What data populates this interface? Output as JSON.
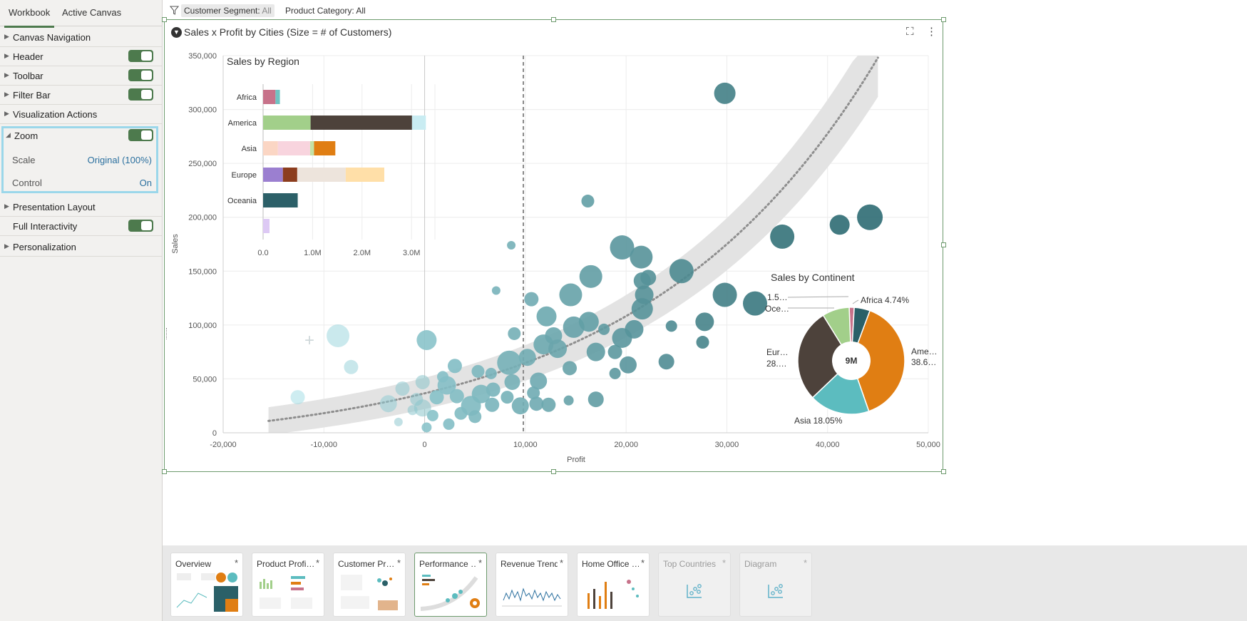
{
  "panel": {
    "tabs": [
      "Workbook",
      "Active Canvas"
    ],
    "items": {
      "canvas_navigation": "Canvas Navigation",
      "header": "Header",
      "toolbar": "Toolbar",
      "filter_bar": "Filter Bar",
      "visualization_actions": "Visualization Actions",
      "zoom": "Zoom",
      "presentation_layout": "Presentation Layout",
      "full_interactivity": "Full Interactivity",
      "personalization": "Personalization"
    },
    "zoom": {
      "scale_label": "Scale",
      "scale_value": "Original (100%)",
      "control_label": "Control",
      "control_value": "On"
    }
  },
  "filters": {
    "segment_label": "Customer Segment:",
    "segment_value": "All",
    "category_label": "Product Category:",
    "category_value": "All"
  },
  "viz": {
    "title": "Sales x Profit by Cities (Size = # of Customers)",
    "xlabel": "Profit",
    "ylabel": "Sales",
    "x_ticks": [
      "-20,000",
      "-10,000",
      "0",
      "10,000",
      "20,000",
      "30,000",
      "40,000",
      "50,000"
    ],
    "y_ticks": [
      "0",
      "50,000",
      "100,000",
      "150,000",
      "200,000",
      "250,000",
      "300,000",
      "350,000"
    ]
  },
  "region_chart": {
    "title": "Sales by Region",
    "ticks": [
      "0.0",
      "1.0M",
      "2.0M",
      "3.0M"
    ]
  },
  "continent_chart": {
    "title": "Sales by Continent",
    "center": "9M",
    "labels": {
      "africa": "Africa 4.74%",
      "america_1": "Ame…",
      "america_2": "38.6…",
      "asia": "Asia 18.05%",
      "europe_1": "Eur…",
      "europe_2": "28.…",
      "oceania": "Oce…",
      "small": "1.5…"
    }
  },
  "chart_data": [
    {
      "type": "scatter",
      "title": "Sales x Profit by Cities (Size = # of Customers)",
      "xlabel": "Profit",
      "ylabel": "Sales",
      "xlim": [
        -20000,
        50000
      ],
      "ylim": [
        0,
        350000
      ],
      "trend": "exponential fit with confidence band",
      "reference_line_x": 9800,
      "points": [
        {
          "x": 29800,
          "y": 315000,
          "size": 15
        },
        {
          "x": 44200,
          "y": 200000,
          "size": 18
        },
        {
          "x": 41200,
          "y": 193000,
          "size": 14
        },
        {
          "x": 35500,
          "y": 182000,
          "size": 17
        },
        {
          "x": 32800,
          "y": 120000,
          "size": 17
        },
        {
          "x": 29800,
          "y": 128000,
          "size": 17
        },
        {
          "x": 27800,
          "y": 103000,
          "size": 13
        },
        {
          "x": 27600,
          "y": 84000,
          "size": 9
        },
        {
          "x": 25500,
          "y": 150000,
          "size": 17
        },
        {
          "x": 24000,
          "y": 66000,
          "size": 11
        },
        {
          "x": 24500,
          "y": 99000,
          "size": 8
        },
        {
          "x": 21500,
          "y": 163000,
          "size": 16
        },
        {
          "x": 19600,
          "y": 172000,
          "size": 17
        },
        {
          "x": 22200,
          "y": 144000,
          "size": 11
        },
        {
          "x": 21600,
          "y": 141000,
          "size": 12
        },
        {
          "x": 21600,
          "y": 115000,
          "size": 15
        },
        {
          "x": 21800,
          "y": 128000,
          "size": 13
        },
        {
          "x": 16200,
          "y": 215000,
          "size": 9
        },
        {
          "x": 16500,
          "y": 145000,
          "size": 16
        },
        {
          "x": 14500,
          "y": 128000,
          "size": 16
        },
        {
          "x": 14800,
          "y": 98000,
          "size": 15
        },
        {
          "x": 16300,
          "y": 103000,
          "size": 14
        },
        {
          "x": 17000,
          "y": 75000,
          "size": 13
        },
        {
          "x": 17800,
          "y": 96000,
          "size": 8
        },
        {
          "x": 19600,
          "y": 88000,
          "size": 14
        },
        {
          "x": 20800,
          "y": 96000,
          "size": 13
        },
        {
          "x": 20200,
          "y": 63000,
          "size": 12
        },
        {
          "x": 18900,
          "y": 75000,
          "size": 10
        },
        {
          "x": 18900,
          "y": 55000,
          "size": 8
        },
        {
          "x": 17000,
          "y": 31000,
          "size": 11
        },
        {
          "x": 14300,
          "y": 30000,
          "size": 7
        },
        {
          "x": 12100,
          "y": 108000,
          "size": 14
        },
        {
          "x": 10600,
          "y": 124000,
          "size": 10
        },
        {
          "x": 8900,
          "y": 92000,
          "size": 9
        },
        {
          "x": 11800,
          "y": 82000,
          "size": 14
        },
        {
          "x": 12800,
          "y": 90000,
          "size": 12
        },
        {
          "x": 13200,
          "y": 78000,
          "size": 13
        },
        {
          "x": 10200,
          "y": 70000,
          "size": 12
        },
        {
          "x": 8400,
          "y": 65000,
          "size": 17
        },
        {
          "x": 8700,
          "y": 47000,
          "size": 11
        },
        {
          "x": 11300,
          "y": 48000,
          "size": 12
        },
        {
          "x": 11100,
          "y": 27000,
          "size": 10
        },
        {
          "x": 14400,
          "y": 60000,
          "size": 10
        },
        {
          "x": 8200,
          "y": 33000,
          "size": 9
        },
        {
          "x": 6800,
          "y": 40000,
          "size": 10
        },
        {
          "x": 6600,
          "y": 55000,
          "size": 8
        },
        {
          "x": 5600,
          "y": 36000,
          "size": 13
        },
        {
          "x": 5300,
          "y": 57000,
          "size": 9
        },
        {
          "x": 4600,
          "y": 25000,
          "size": 14
        },
        {
          "x": 3200,
          "y": 34000,
          "size": 10
        },
        {
          "x": 3000,
          "y": 62000,
          "size": 10
        },
        {
          "x": 2200,
          "y": 44000,
          "size": 13
        },
        {
          "x": 1200,
          "y": 33000,
          "size": 10
        },
        {
          "x": 800,
          "y": 16000,
          "size": 8
        },
        {
          "x": -200,
          "y": 23000,
          "size": 12
        },
        {
          "x": -800,
          "y": 31000,
          "size": 9
        },
        {
          "x": -1200,
          "y": 21000,
          "size": 7
        },
        {
          "x": -200,
          "y": 47000,
          "size": 10
        },
        {
          "x": -2200,
          "y": 41000,
          "size": 10
        },
        {
          "x": -3600,
          "y": 27000,
          "size": 12
        },
        {
          "x": 7100,
          "y": 132000,
          "size": 6
        },
        {
          "x": 8600,
          "y": 174000,
          "size": 6
        },
        {
          "x": 200,
          "y": 86000,
          "size": 14
        },
        {
          "x": -8600,
          "y": 90000,
          "size": 16
        },
        {
          "x": -7300,
          "y": 61000,
          "size": 10
        },
        {
          "x": -12600,
          "y": 33000,
          "size": 10
        },
        {
          "x": 2400,
          "y": 8000,
          "size": 8
        },
        {
          "x": 3600,
          "y": 18000,
          "size": 9
        },
        {
          "x": 5000,
          "y": 15000,
          "size": 9
        },
        {
          "x": 6700,
          "y": 26000,
          "size": 10
        },
        {
          "x": 9500,
          "y": 25000,
          "size": 12
        },
        {
          "x": 10800,
          "y": 37000,
          "size": 9
        },
        {
          "x": 12300,
          "y": 26000,
          "size": 10
        },
        {
          "x": 200,
          "y": 5000,
          "size": 7
        },
        {
          "x": -2600,
          "y": 10000,
          "size": 6
        },
        {
          "x": 1800,
          "y": 52000,
          "size": 8
        }
      ]
    },
    {
      "type": "bar",
      "orientation": "horizontal-stacked",
      "title": "Sales by Region",
      "categories": [
        "Africa",
        "America",
        "Asia",
        "Europe",
        "Oceania",
        ""
      ],
      "xlim": [
        0,
        3300000
      ],
      "series": [
        {
          "values": [
            250000,
            960000,
            300000,
            400000,
            700000,
            130000
          ],
          "color": [
            "#c7728a",
            "#a2cf8a",
            "#fbd6c4",
            "#9b7fd0",
            "#2c6068",
            "#ddc9f4"
          ]
        },
        {
          "values": [
            0,
            2050000,
            650000,
            290000,
            0,
            0
          ],
          "color": [
            "#ffffff",
            "#4d423b",
            "#f8d4de",
            "#8c3d1e",
            "#ffffff",
            "#ffffff"
          ]
        },
        {
          "values": [
            90000,
            280000,
            80000,
            980000,
            0,
            0
          ],
          "color": [
            "#6fc3c2",
            "#c9ecf2",
            "#c4e2a6",
            "#ede4dc",
            "#ffffff",
            "#ffffff"
          ]
        },
        {
          "values": [
            0,
            0,
            430000,
            780000,
            0,
            0
          ],
          "color": [
            "#ffffff",
            "#ffffff",
            "#e07e13",
            "#ffdfa8",
            "#ffffff",
            "#ffffff"
          ]
        }
      ]
    },
    {
      "type": "pie",
      "style": "donut",
      "title": "Sales by Continent",
      "center_label": "9M",
      "slices": [
        {
          "label": "Africa",
          "value": 4.74,
          "color": "#2a6068"
        },
        {
          "label": "America",
          "value": 38.6,
          "color": "#e07e13"
        },
        {
          "label": "Asia",
          "value": 18.05,
          "color": "#5cbcbf"
        },
        {
          "label": "Europe",
          "value": 28.0,
          "color": "#4d423b"
        },
        {
          "label": "Oceania",
          "value": 8.1,
          "color": "#a2cf8a"
        },
        {
          "label": "1.5…",
          "value": 1.5,
          "color": "#c7728a"
        }
      ]
    }
  ],
  "canvases": [
    {
      "title": "Overview",
      "state": "normal"
    },
    {
      "title": "Product Profi…",
      "state": "normal"
    },
    {
      "title": "Customer Pr…",
      "state": "normal"
    },
    {
      "title": "Performance …",
      "state": "active"
    },
    {
      "title": "Revenue Trend",
      "state": "normal"
    },
    {
      "title": "Home Office …",
      "state": "normal"
    },
    {
      "title": "Top Countries",
      "state": "disabled"
    },
    {
      "title": "Diagram",
      "state": "disabled"
    }
  ],
  "canvas_star": "*",
  "colors": {
    "accent_green": "#4d7a4d",
    "zoom_highlight": "#9bd7ea",
    "bubble_base": "#5cbcbf",
    "bubble_dark": "#2a6068"
  },
  "icons": [
    "filter-icon",
    "expand-icon",
    "more-icon",
    "viz-type-icon",
    "chart-placeholder-icon",
    "caret-right-icon",
    "caret-down-icon"
  ]
}
